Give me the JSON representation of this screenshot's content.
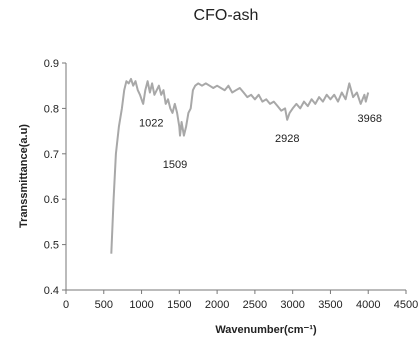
{
  "chart_data": {
    "type": "line",
    "title": "CFO-ash",
    "xlabel": "Wavenumber(cm⁻¹)",
    "ylabel": "Transsmittance(a.u)",
    "xlim": [
      0,
      4500
    ],
    "ylim": [
      0.4,
      0.9
    ],
    "xticks": [
      "0",
      "500",
      "1000",
      "1500",
      "2000",
      "2500",
      "3000",
      "3500",
      "4000",
      "4500"
    ],
    "yticks": [
      "0.4",
      "0.5",
      "0.6",
      "0.7",
      "0.8",
      "0.9"
    ],
    "grid": false,
    "legend": "none",
    "color": "#a8a8a8",
    "annotations": [
      {
        "text": "1022",
        "x": 1022,
        "y": 0.8
      },
      {
        "text": "1509",
        "x": 1509,
        "y": 0.73
      },
      {
        "text": "2928",
        "x": 2928,
        "y": 0.775
      },
      {
        "text": "3968",
        "x": 3968,
        "y": 0.81
      }
    ],
    "series": [
      {
        "x": [
          600,
          630,
          660,
          700,
          740,
          770,
          800,
          830,
          860,
          890,
          920,
          950,
          980,
          1010,
          1022,
          1050,
          1080,
          1110,
          1140,
          1170,
          1200,
          1230,
          1260,
          1290,
          1320,
          1350,
          1380,
          1410,
          1440,
          1470,
          1500,
          1509,
          1530,
          1560,
          1590,
          1620,
          1650,
          1680,
          1710,
          1750,
          1800,
          1850,
          1900,
          1950,
          2000,
          2050,
          2100,
          2150,
          2200,
          2250,
          2300,
          2350,
          2400,
          2450,
          2500,
          2550,
          2600,
          2650,
          2700,
          2750,
          2800,
          2850,
          2900,
          2928,
          2960,
          3000,
          3050,
          3100,
          3150,
          3200,
          3250,
          3300,
          3350,
          3400,
          3450,
          3500,
          3550,
          3600,
          3650,
          3700,
          3750,
          3800,
          3850,
          3900,
          3950,
          3968,
          4000
        ],
        "y": [
          0.48,
          0.6,
          0.7,
          0.76,
          0.8,
          0.84,
          0.86,
          0.855,
          0.865,
          0.85,
          0.86,
          0.84,
          0.83,
          0.815,
          0.81,
          0.84,
          0.86,
          0.835,
          0.855,
          0.83,
          0.84,
          0.85,
          0.83,
          0.84,
          0.81,
          0.82,
          0.8,
          0.79,
          0.81,
          0.79,
          0.76,
          0.74,
          0.77,
          0.74,
          0.76,
          0.79,
          0.8,
          0.84,
          0.85,
          0.855,
          0.85,
          0.855,
          0.85,
          0.845,
          0.85,
          0.845,
          0.84,
          0.85,
          0.835,
          0.84,
          0.845,
          0.835,
          0.825,
          0.83,
          0.82,
          0.83,
          0.815,
          0.82,
          0.81,
          0.815,
          0.805,
          0.795,
          0.8,
          0.775,
          0.79,
          0.8,
          0.81,
          0.8,
          0.815,
          0.805,
          0.82,
          0.81,
          0.825,
          0.815,
          0.83,
          0.82,
          0.83,
          0.815,
          0.835,
          0.82,
          0.855,
          0.825,
          0.835,
          0.81,
          0.83,
          0.815,
          0.835
        ]
      }
    ]
  }
}
